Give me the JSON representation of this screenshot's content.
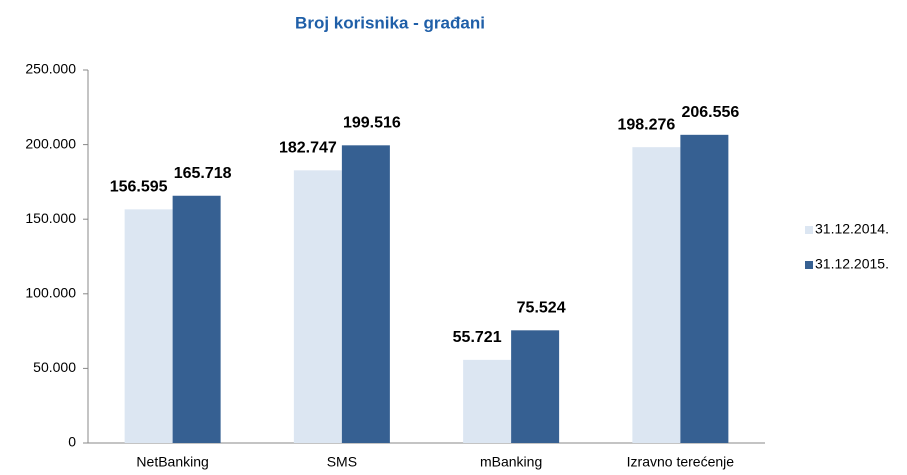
{
  "chart_data": {
    "type": "bar",
    "title": "Broj korisnika - građani",
    "categories": [
      "NetBanking",
      "SMS",
      "mBanking",
      "Izravno terećenje"
    ],
    "series": [
      {
        "name": "31.12.2014.",
        "color": "#dce6f2",
        "values": [
          156595,
          182747,
          55721,
          198276
        ],
        "value_labels": [
          "156.595",
          "182.747",
          "55.721",
          "198.276"
        ]
      },
      {
        "name": "31.12.2015.",
        "color": "#366092",
        "values": [
          165718,
          199516,
          75524,
          206556
        ],
        "value_labels": [
          "165.718",
          "199.516",
          "75.524",
          "206.556"
        ]
      }
    ],
    "ylim": [
      0,
      250000
    ],
    "yticks": [
      0,
      {
        "value": 50000,
        "label": "50.000"
      },
      {
        "value": 100000,
        "label": "100.000"
      },
      {
        "value": 150000,
        "label": "150.000"
      },
      {
        "value": 200000,
        "label": "200.000"
      },
      {
        "value": 250000,
        "label": "250.000"
      }
    ],
    "grid": false,
    "legend": "right"
  }
}
